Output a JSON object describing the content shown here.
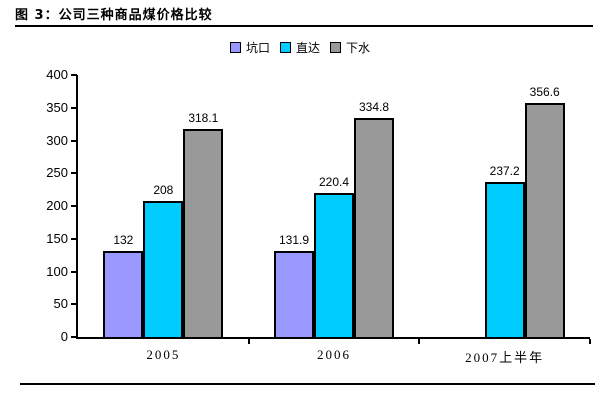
{
  "figure": {
    "title": "图 3：公司三种商品煤价格比较"
  },
  "chart_data": {
    "type": "bar",
    "title": "图 3：公司三种商品煤价格比较",
    "categories": [
      "2005",
      "2006",
      "2007上半年"
    ],
    "series": [
      {
        "name": "坑口",
        "color": "#9999FF",
        "values": [
          132,
          131.9,
          null
        ]
      },
      {
        "name": "直达",
        "color": "#00CCFF",
        "values": [
          208,
          220.4,
          237.2
        ]
      },
      {
        "name": "下水",
        "color": "#999999",
        "values": [
          318.1,
          334.8,
          356.6
        ]
      }
    ],
    "ylim": [
      0,
      400
    ],
    "yticks": [
      0,
      50,
      100,
      150,
      200,
      250,
      300,
      350,
      400
    ],
    "grid": false,
    "legend_position": "top-center",
    "data_labels": true,
    "bar_border_color": "#000000",
    "axis_color": "#000000",
    "background_color": "#FFFFFF"
  }
}
